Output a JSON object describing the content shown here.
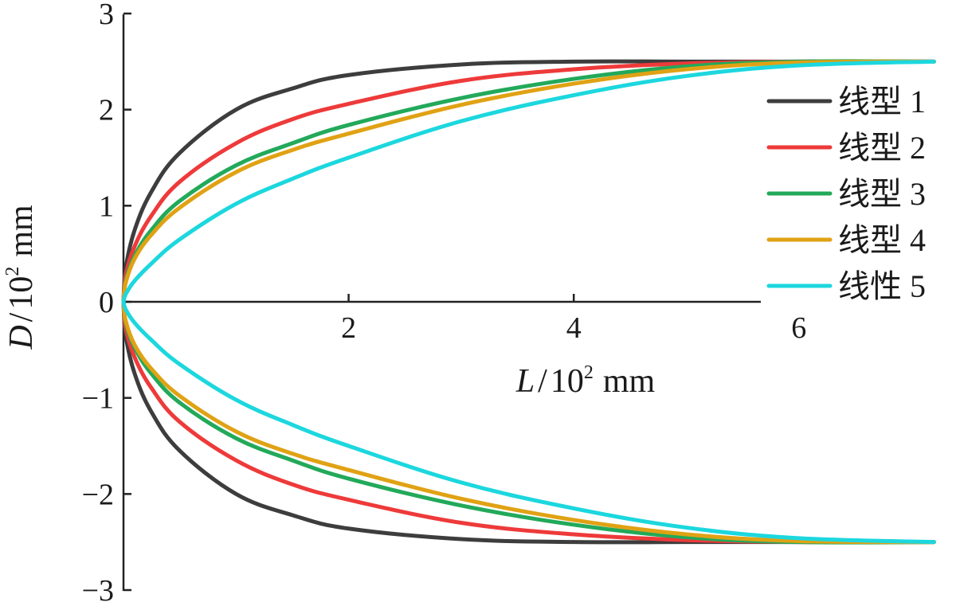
{
  "chart_data": {
    "type": "line",
    "xlabel": {
      "var": "L",
      "sep": "/",
      "unit_base": "10",
      "unit_exp": "2",
      "unit": "mm"
    },
    "ylabel": {
      "var": "D",
      "sep": "/",
      "unit_base": "10",
      "unit_exp": "2",
      "unit": "mm"
    },
    "xlim": [
      0,
      7.2
    ],
    "ylim": [
      -3,
      3
    ],
    "x_ticks": [
      {
        "value": 2,
        "label": "2"
      },
      {
        "value": 4,
        "label": "4"
      },
      {
        "value": 6,
        "label": "6"
      }
    ],
    "y_ticks": [
      {
        "value": 3,
        "label": "3"
      },
      {
        "value": 2,
        "label": "2"
      },
      {
        "value": 1,
        "label": "1"
      },
      {
        "value": 0,
        "label": "0"
      },
      {
        "value": -1,
        "label": "−1"
      },
      {
        "value": -2,
        "label": "−2"
      },
      {
        "value": -3,
        "label": "−3"
      }
    ],
    "grid": false,
    "legend_position": "top-right",
    "mirrored_about_x_axis": true,
    "series": [
      {
        "name": "线型 1",
        "color": "#3d3d3d",
        "x": [
          0,
          0.02,
          0.1,
          0.25,
          0.5,
          1.0,
          1.5,
          2.0,
          3.0,
          4.0,
          5.0,
          6.0,
          7.2
        ],
        "y": [
          0,
          0.35,
          0.75,
          1.15,
          1.55,
          2.0,
          2.22,
          2.36,
          2.47,
          2.5,
          2.5,
          2.5,
          2.5
        ]
      },
      {
        "name": "线型 2",
        "color": "#ee3a3a",
        "x": [
          0,
          0.02,
          0.1,
          0.25,
          0.5,
          1.0,
          1.5,
          2.0,
          3.0,
          4.0,
          5.0,
          6.0,
          7.2
        ],
        "y": [
          0,
          0.28,
          0.58,
          0.9,
          1.25,
          1.65,
          1.9,
          2.06,
          2.3,
          2.42,
          2.48,
          2.5,
          2.5
        ]
      },
      {
        "name": "线型 3",
        "color": "#22a95a",
        "x": [
          0,
          0.02,
          0.1,
          0.25,
          0.5,
          1.0,
          1.5,
          2.0,
          3.0,
          4.0,
          5.0,
          6.0,
          7.2
        ],
        "y": [
          0,
          0.22,
          0.48,
          0.75,
          1.05,
          1.42,
          1.65,
          1.84,
          2.12,
          2.32,
          2.45,
          2.5,
          2.5
        ]
      },
      {
        "name": "线型 4",
        "color": "#e0a214",
        "x": [
          0,
          0.02,
          0.1,
          0.25,
          0.5,
          1.0,
          1.5,
          2.0,
          3.0,
          4.0,
          5.0,
          6.0,
          7.2
        ],
        "y": [
          0,
          0.2,
          0.45,
          0.7,
          0.98,
          1.35,
          1.58,
          1.75,
          2.05,
          2.27,
          2.42,
          2.49,
          2.5
        ]
      },
      {
        "name": "线性 5",
        "color": "#1cd7de",
        "x": [
          0,
          0.02,
          0.1,
          0.25,
          0.5,
          1.0,
          1.5,
          2.0,
          3.0,
          4.0,
          5.0,
          6.0,
          7.2
        ],
        "y": [
          0,
          0.08,
          0.22,
          0.4,
          0.65,
          1.02,
          1.28,
          1.5,
          1.88,
          2.15,
          2.35,
          2.46,
          2.5
        ]
      }
    ]
  }
}
